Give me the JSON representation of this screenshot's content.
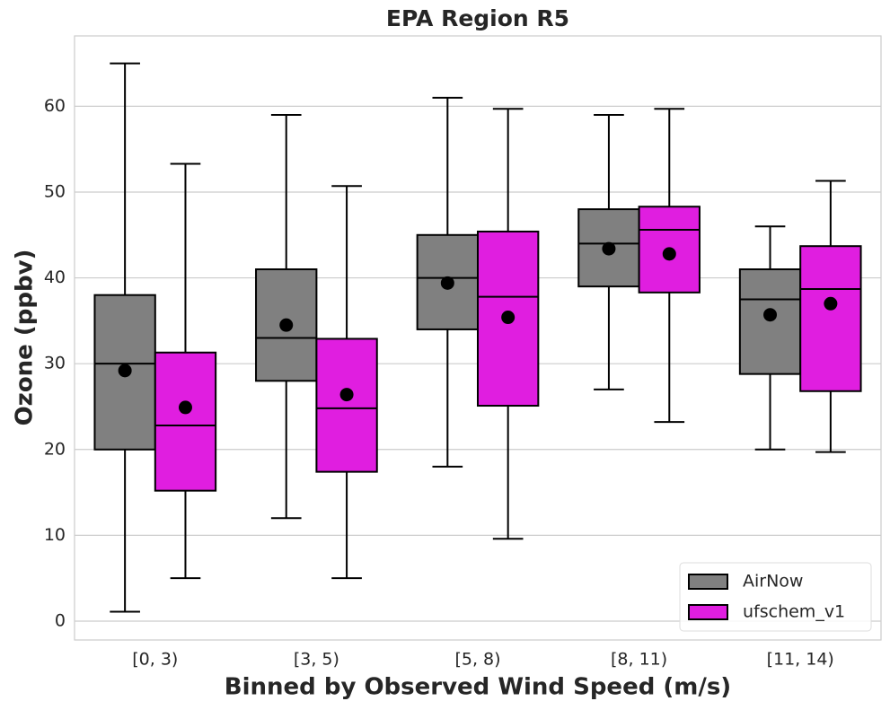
{
  "chart_data": {
    "type": "box",
    "title": "EPA Region R5",
    "x_label": "Binned by Observed Wind Speed (m/s)",
    "y_label": "Ozone (ppbv)",
    "categories": [
      "[0, 3)",
      "[3, 5)",
      "[5, 8)",
      "[8, 11)",
      "[11, 14)"
    ],
    "series": [
      {
        "name": "AirNow",
        "color": "#808080",
        "whisker_low": [
          1.1,
          12,
          18,
          27,
          20
        ],
        "q1": [
          20,
          28,
          34,
          39,
          28.8
        ],
        "median": [
          30,
          33,
          40,
          44,
          37.5
        ],
        "q3": [
          38,
          41,
          45,
          48,
          41
        ],
        "whisker_high": [
          65,
          59,
          61,
          59,
          46
        ],
        "mean": [
          29.2,
          34.5,
          39.4,
          43.4,
          35.7
        ]
      },
      {
        "name": "ufschem_v1",
        "color": "#e01ee0",
        "whisker_low": [
          5,
          5,
          9.6,
          23.2,
          19.7
        ],
        "q1": [
          15.2,
          17.4,
          25.1,
          38.3,
          26.8
        ],
        "median": [
          22.8,
          24.8,
          37.8,
          45.6,
          38.7
        ],
        "q3": [
          31.3,
          32.9,
          45.4,
          48.3,
          43.7
        ],
        "whisker_high": [
          53.3,
          50.7,
          59.7,
          59.7,
          51.3
        ],
        "mean": [
          24.9,
          26.4,
          35.4,
          42.8,
          37
        ]
      }
    ],
    "ylim": [
      -2.2,
      68.2
    ],
    "yticks": [
      0,
      10,
      20,
      30,
      40,
      50,
      60
    ],
    "grid": true,
    "legend": "lower right"
  }
}
